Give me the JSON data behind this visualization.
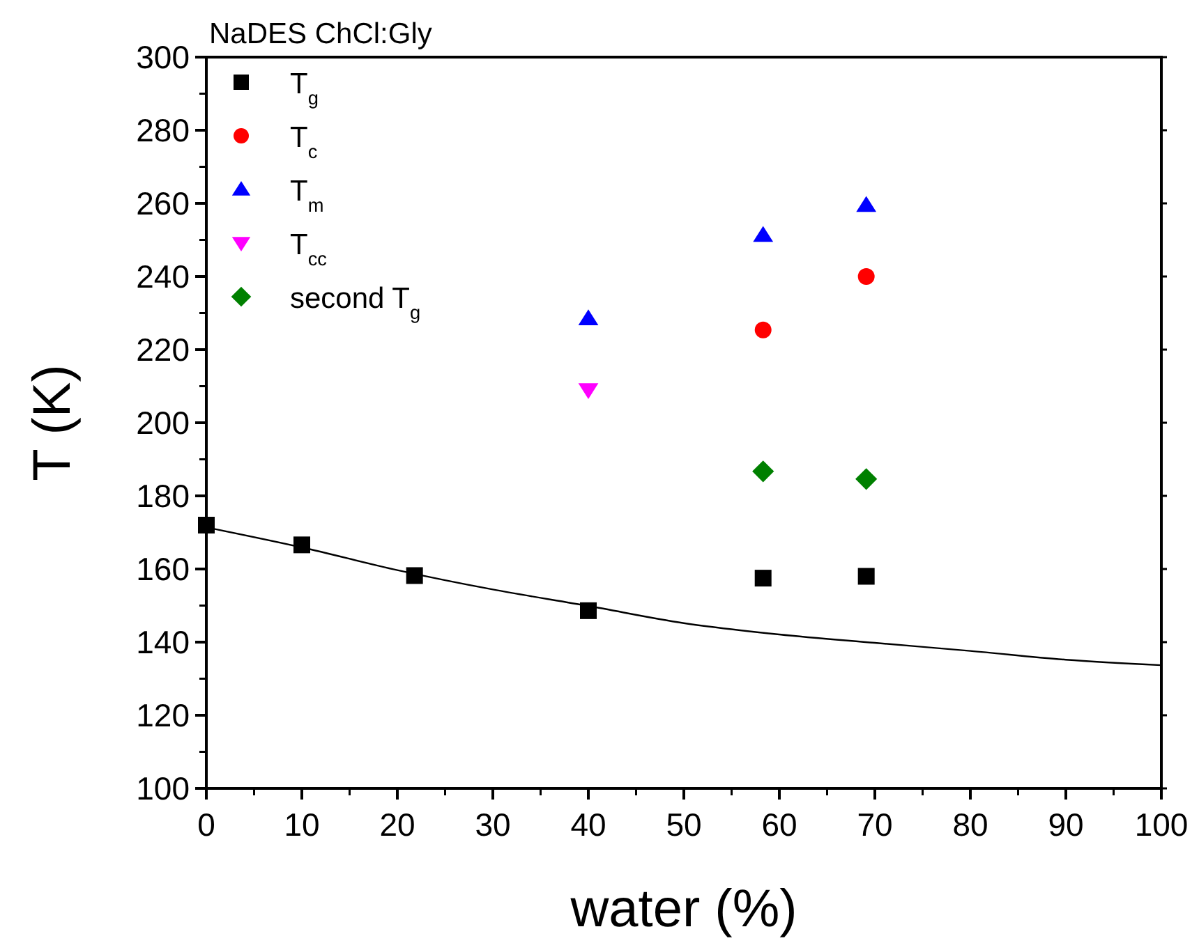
{
  "chart_data": {
    "type": "scatter",
    "title": "NaDES ChCl:Gly",
    "xlabel": "water (%)",
    "ylabel": "T (K)",
    "xlim": [
      0,
      100
    ],
    "xticks": [
      0,
      10,
      20,
      30,
      40,
      50,
      60,
      70,
      80,
      90,
      100
    ],
    "ylim": [
      100,
      300
    ],
    "yticks": [
      100,
      120,
      140,
      160,
      180,
      200,
      220,
      240,
      260,
      280,
      300
    ],
    "grid": false,
    "legend": "top left",
    "series": [
      {
        "name": "T$_{g}$",
        "color": "#000000",
        "marker": "square",
        "x": [
          0,
          10,
          21.8,
          40,
          58.3,
          69.1
        ],
        "values": [
          172,
          166.6,
          158.2,
          148.6,
          157.5,
          158
        ]
      },
      {
        "name": "T$_{c}$",
        "color": "#ff0000",
        "marker": "circle",
        "x": [
          58.3,
          69.1
        ],
        "values": [
          225.4,
          240
        ]
      },
      {
        "name": "T$_{m}$",
        "color": "#0000ff",
        "marker": "triangle",
        "x": [
          40,
          58.3,
          69.1
        ],
        "values": [
          228.5,
          251.3,
          259.5
        ]
      },
      {
        "name": "T$_{cc}$",
        "color": "#ff00ff",
        "marker": "triangle-down",
        "x": [
          40
        ],
        "values": [
          209
        ]
      },
      {
        "name": "second T$_{g}$",
        "color": "#008000",
        "marker": "diamond",
        "x": [
          58.3,
          69.1
        ],
        "values": [
          186.7,
          184.6
        ]
      },
      {
        "type": "line",
        "color": "#000000",
        "x": [
          0,
          10,
          20,
          30,
          40,
          50,
          60,
          70,
          80,
          90,
          100
        ],
        "values": [
          171.4,
          165.9,
          159.7,
          154.4,
          149.9,
          145.2,
          142.1,
          139.8,
          137.6,
          135.2,
          133.7
        ]
      }
    ]
  }
}
